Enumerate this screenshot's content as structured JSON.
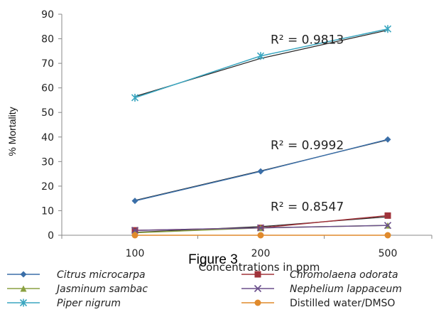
{
  "figure_caption": "Figure 3",
  "colors": {
    "Citrus microcarpa": "#3b6fa8",
    "Chromolaena odorata": "#a0333a",
    "Jasminum sambac": "#8aa040",
    "Nephelium lappaceum": "#6a4f8c",
    "Piper nigrum": "#3aa6c0",
    "Distilled water/DMSO": "#e08a2c",
    "trendline": "#222222",
    "axis": "#888888"
  },
  "chart_data": {
    "type": "line",
    "title": "",
    "xlabel": "Concentrations in ppm",
    "ylabel": "% Mortality",
    "categories": [
      "100",
      "200",
      "500"
    ],
    "ylim": [
      0,
      90
    ],
    "yticks": [
      "0",
      "10",
      "20",
      "30",
      "40",
      "50",
      "60",
      "70",
      "80",
      "90"
    ],
    "grid": false,
    "legend_position": "bottom",
    "series": [
      {
        "name": "Citrus microcarpa",
        "values": [
          14,
          26,
          39
        ],
        "marker": "diamond"
      },
      {
        "name": "Chromolaena odorata",
        "values": [
          2,
          3,
          8
        ],
        "marker": "square"
      },
      {
        "name": "Jasminum sambac",
        "values": [
          1,
          3,
          4
        ],
        "marker": "triangle"
      },
      {
        "name": "Nephelium lappaceum",
        "values": [
          2,
          3,
          4
        ],
        "marker": "x"
      },
      {
        "name": "Piper nigrum",
        "values": [
          56,
          73,
          84
        ],
        "marker": "star"
      },
      {
        "name": "Distilled water/DMSO",
        "values": [
          0,
          0,
          0
        ],
        "marker": "circle"
      }
    ],
    "trendlines": [
      {
        "series": "Piper nigrum",
        "values": [
          56.5,
          72,
          83.5
        ]
      },
      {
        "series": "Citrus microcarpa",
        "values": [
          14.2,
          26.2,
          38.8
        ]
      },
      {
        "series": "Chromolaena odorata",
        "values": [
          1.2,
          3.5,
          7.5
        ]
      }
    ],
    "annotations": [
      {
        "text": "R² = 0.9813",
        "x": "200",
        "y": 82
      },
      {
        "text": "R² = 0.9992",
        "x": "200",
        "y": 39
      },
      {
        "text": "R² = 0.8547",
        "x": "200",
        "y": 14
      }
    ]
  }
}
